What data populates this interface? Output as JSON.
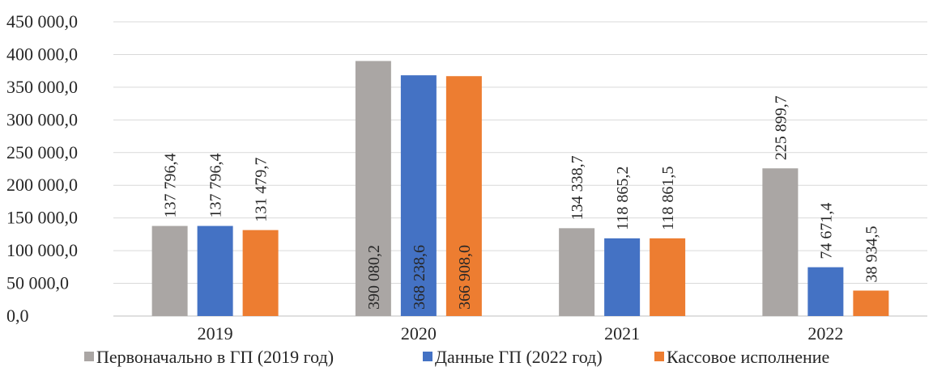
{
  "chart_data": {
    "type": "bar",
    "title": "",
    "xlabel": "",
    "ylabel": "",
    "ylim": [
      0,
      450000
    ],
    "ytick_values": [
      0,
      50000,
      100000,
      150000,
      200000,
      250000,
      300000,
      350000,
      400000,
      450000
    ],
    "ytick_labels": [
      "0,0",
      "50 000,0",
      "100 000,0",
      "150 000,0",
      "200 000,0",
      "250 000,0",
      "300 000,0",
      "350 000,0",
      "400 000,0",
      "450 000,0"
    ],
    "grid": true,
    "legend_position": "bottom",
    "categories": [
      "2019",
      "2020",
      "2021",
      "2022"
    ],
    "series": [
      {
        "name": "Первоначально в ГП (2019 год)",
        "color": "#aaa6a4",
        "values": [
          137796.4,
          390080.2,
          134338.7,
          225899.7
        ],
        "labels": [
          "137 796,4",
          "390 080,2",
          "134 338,7",
          "225 899,7"
        ]
      },
      {
        "name": "Данные ГП (2022 год)",
        "color": "#4472c4",
        "values": [
          137796.4,
          368238.6,
          118865.2,
          74671.4
        ],
        "labels": [
          "137 796,4",
          "368 238,6",
          "118 865,2",
          "74 671,4"
        ]
      },
      {
        "name": "Кассовое исполнение",
        "color": "#ed7d31",
        "values": [
          131479.7,
          366908.0,
          118861.5,
          38934.5
        ],
        "labels": [
          "131 479,7",
          "366 908,0",
          "118 861,5",
          "38 934,5"
        ]
      }
    ]
  }
}
